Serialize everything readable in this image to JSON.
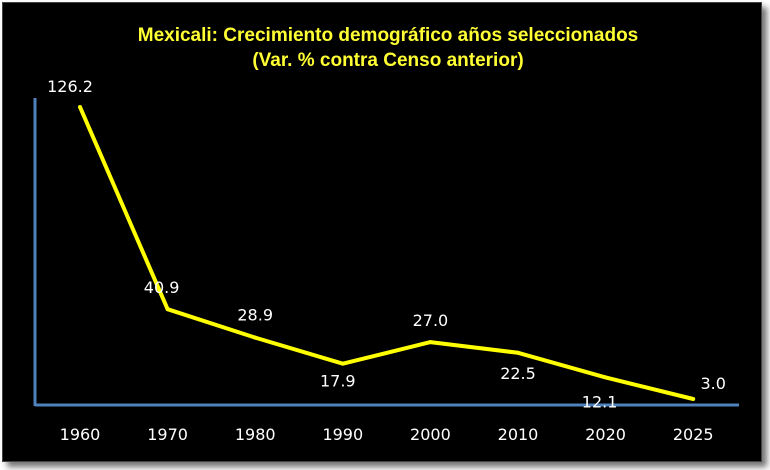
{
  "chart_data": {
    "type": "line",
    "title": "Mexicali: Crecimiento demográfico años seleccionados",
    "subtitle": "(Var. % contra Censo anterior)",
    "xlabel": "",
    "ylabel": "",
    "categories": [
      "1960",
      "1970",
      "1980",
      "1990",
      "2000",
      "2010",
      "2020",
      "2025"
    ],
    "series": [
      {
        "values": [
          126.2,
          40.9,
          28.9,
          17.9,
          27.0,
          22.5,
          12.1,
          3.0
        ],
        "labels": [
          "126.2",
          "40.9",
          "28.9",
          "17.9",
          "27.0",
          "22.5",
          "12.1",
          "3.0"
        ],
        "color": "#ffff00"
      }
    ],
    "ylim": [
      0,
      130
    ],
    "grid": false,
    "legend": "none",
    "colors": {
      "background": "#000000",
      "title": "#ffff33",
      "axis": "#4f81bd",
      "text": "#ffffff"
    }
  }
}
